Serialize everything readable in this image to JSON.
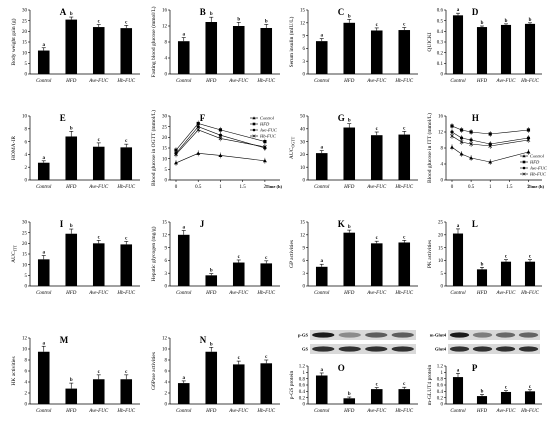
{
  "chart_data": [
    {
      "id": "A",
      "label": "A",
      "type": "bar",
      "categories": [
        "Control",
        "HFD",
        "Ave-FUC",
        "Hb-FUC"
      ],
      "values": [
        11,
        25.5,
        22,
        21.5
      ],
      "errors": [
        1.3,
        1.2,
        1.2,
        1.3
      ],
      "sig": [
        "a",
        "b",
        "c",
        "c"
      ],
      "ylabel": "Body weight gain (g)",
      "ylim": [
        0,
        30
      ],
      "yticks": [
        0,
        5,
        10,
        15,
        20,
        25,
        30
      ]
    },
    {
      "id": "B",
      "label": "B",
      "type": "bar",
      "categories": [
        "Control",
        "HFD",
        "Ave-FUC",
        "Hb-FUC"
      ],
      "values": [
        8.2,
        13,
        12,
        11.5
      ],
      "errors": [
        0.9,
        1.2,
        0.9,
        0.9
      ],
      "sig": [
        "a",
        "b",
        "b",
        "b"
      ],
      "ylabel": "Fasting blood glucose (mmol/L)",
      "ylim": [
        0,
        16
      ],
      "yticks": [
        0,
        4,
        8,
        12,
        16
      ]
    },
    {
      "id": "C",
      "label": "C",
      "type": "bar",
      "categories": [
        "Control",
        "HFD",
        "Ave-FUC",
        "Hb-FUC"
      ],
      "values": [
        7.7,
        12,
        10.2,
        10.3
      ],
      "errors": [
        0.6,
        0.8,
        0.6,
        0.6
      ],
      "sig": [
        "a",
        "b",
        "c",
        "c"
      ],
      "ylabel": "Serum insulin (mIU/L)",
      "ylim": [
        0,
        15
      ],
      "yticks": [
        0,
        3,
        6,
        9,
        12,
        15
      ]
    },
    {
      "id": "D",
      "label": "D",
      "type": "bar",
      "categories": [
        "Control",
        "HFD",
        "Ave-FUC",
        "Hb-FUC"
      ],
      "values": [
        0.55,
        0.44,
        0.46,
        0.47
      ],
      "errors": [
        0.02,
        0.01,
        0.01,
        0.01
      ],
      "sig": [
        "a",
        "b",
        "b",
        "b"
      ],
      "ylabel": "QUICKI",
      "ylim": [
        0,
        0.6
      ],
      "yticks": [
        "0",
        "0.1",
        "0.2",
        "0.3",
        "0.4",
        "0.5",
        "0.6"
      ]
    },
    {
      "id": "E",
      "label": "E",
      "type": "bar",
      "categories": [
        "Control",
        "HFD",
        "Ave-FUC",
        "Hb-FUC"
      ],
      "values": [
        2.7,
        6.8,
        5.2,
        5.1
      ],
      "errors": [
        0.3,
        0.8,
        0.6,
        0.5
      ],
      "sig": [
        "a",
        "b",
        "c",
        "c"
      ],
      "ylabel": "HOMA-IR",
      "ylim": [
        0,
        10
      ],
      "yticks": [
        0,
        2,
        4,
        6,
        8,
        10
      ]
    },
    {
      "id": "F",
      "label": "F",
      "type": "line",
      "x": [
        0,
        0.5,
        1,
        2
      ],
      "xticks": [
        "0",
        "0.5",
        "1",
        "1.5",
        "2"
      ],
      "xlabel": "Time (h)",
      "ylabel": "Blood glucose in OGTT (mmol/L)",
      "ylim": [
        0,
        30
      ],
      "yticks": [
        0,
        5,
        10,
        15,
        20,
        25,
        30
      ],
      "series": [
        {
          "name": "Control",
          "marker": "triangle",
          "values": [
            8,
            12.5,
            11.5,
            9
          ]
        },
        {
          "name": "HFD",
          "marker": "square",
          "values": [
            14,
            26.5,
            23.5,
            18
          ]
        },
        {
          "name": "Ave-FUC",
          "marker": "circle",
          "values": [
            12.5,
            25,
            21,
            15
          ]
        },
        {
          "name": "Hb-FUC",
          "marker": "x",
          "values": [
            12,
            23.5,
            19.5,
            15.5
          ]
        }
      ]
    },
    {
      "id": "G",
      "label": "G",
      "type": "bar",
      "categories": [
        "Control",
        "HFD",
        "Ave-FUC",
        "Hb-FUC"
      ],
      "values": [
        21,
        41,
        35,
        35.5
      ],
      "errors": [
        2,
        3,
        2.5,
        2.5
      ],
      "sig": [
        "a",
        "b",
        "c",
        "c"
      ],
      "ylabel": "AUC_OGTT",
      "ylim": [
        0,
        50
      ],
      "yticks": [
        0,
        10,
        20,
        30,
        40,
        50
      ]
    },
    {
      "id": "H",
      "label": "H",
      "type": "line",
      "x": [
        0,
        0.25,
        0.5,
        1,
        2
      ],
      "xticks": [
        "0",
        "0.5",
        "1",
        "1.5",
        "2"
      ],
      "xlabel": "Time (h)",
      "ylabel": "Blood glucose in ITT (mmol/L)",
      "ylim": [
        0,
        16
      ],
      "yticks": [
        0,
        4,
        8,
        12,
        16
      ],
      "series": [
        {
          "name": "Control",
          "marker": "triangle",
          "values": [
            8.2,
            6.5,
            5.5,
            4.5,
            7
          ]
        },
        {
          "name": "HFD",
          "marker": "square",
          "values": [
            13.5,
            12.5,
            12,
            11.5,
            12.5
          ]
        },
        {
          "name": "Ave-FUC",
          "marker": "circle",
          "values": [
            12,
            10.5,
            10,
            9,
            10.5
          ]
        },
        {
          "name": "Hb-FUC",
          "marker": "x",
          "values": [
            11,
            9.5,
            9,
            8.5,
            10
          ]
        }
      ]
    },
    {
      "id": "I",
      "label": "I",
      "type": "bar",
      "categories": [
        "Control",
        "HFD",
        "Ave-FUC",
        "Hb-FUC"
      ],
      "values": [
        12.5,
        24.5,
        20,
        19.5
      ],
      "errors": [
        1.8,
        2.2,
        1.4,
        1.4
      ],
      "sig": [
        "a",
        "b",
        "c",
        "c"
      ],
      "ylabel": "AUC_ITT",
      "ylim": [
        0,
        30
      ],
      "yticks": [
        0,
        5,
        10,
        15,
        20,
        25,
        30
      ]
    },
    {
      "id": "J",
      "label": "J",
      "type": "bar",
      "categories": [
        "Control",
        "HFD",
        "Ave-FUC",
        "Hb-FUC"
      ],
      "values": [
        12,
        2.5,
        5.5,
        5.3
      ],
      "errors": [
        1,
        0.4,
        0.6,
        0.6
      ],
      "sig": [
        "a",
        "b",
        "c",
        "c"
      ],
      "ylabel": "Hepatic glycogen (mg/g)",
      "ylim": [
        0,
        15
      ],
      "yticks": [
        0,
        3,
        6,
        9,
        12,
        15
      ]
    },
    {
      "id": "K",
      "label": "K",
      "type": "bar",
      "categories": [
        "Control",
        "HFD",
        "Ave-FUC",
        "Hb-FUC"
      ],
      "values": [
        4.5,
        12.5,
        10,
        10.2
      ],
      "errors": [
        0.6,
        0.6,
        0.5,
        0.5
      ],
      "sig": [
        "a",
        "b",
        "c",
        "c"
      ],
      "ylabel": "GP activities",
      "ylim": [
        0,
        15
      ],
      "yticks": [
        0,
        3,
        6,
        9,
        12,
        15
      ]
    },
    {
      "id": "L",
      "label": "L",
      "type": "bar",
      "categories": [
        "Control",
        "HFD",
        "Ave-FUC",
        "Hb-FUC"
      ],
      "values": [
        20.5,
        6.5,
        9.5,
        9.5
      ],
      "errors": [
        1.8,
        0.8,
        0.8,
        0.8
      ],
      "sig": [
        "a",
        "b",
        "c",
        "c"
      ],
      "ylabel": "PK activities",
      "ylim": [
        0,
        25
      ],
      "yticks": [
        0,
        5,
        10,
        15,
        20,
        25
      ]
    },
    {
      "id": "M",
      "label": "M",
      "type": "bar",
      "categories": [
        "Control",
        "HFD",
        "Ave-FUC",
        "Hb-FUC"
      ],
      "values": [
        9.5,
        2.8,
        4.5,
        4.5
      ],
      "errors": [
        1,
        1,
        0.8,
        0.8
      ],
      "sig": [
        "a",
        "b",
        "c",
        "c"
      ],
      "ylabel": "HK activities",
      "ylim": [
        0,
        12
      ],
      "yticks": [
        0,
        2,
        4,
        6,
        8,
        10,
        12
      ]
    },
    {
      "id": "N",
      "label": "N",
      "type": "bar",
      "categories": [
        "Control",
        "HFD",
        "Ave-FUC",
        "Hb-FUC"
      ],
      "values": [
        3.8,
        9.5,
        7.2,
        7.4
      ],
      "errors": [
        0.4,
        0.8,
        0.6,
        0.6
      ],
      "sig": [
        "a",
        "b",
        "c",
        "c"
      ],
      "ylabel": "G6Pase activities",
      "ylim": [
        0,
        12
      ],
      "yticks": [
        0,
        2,
        4,
        6,
        8,
        10,
        12
      ]
    },
    {
      "id": "O",
      "label": "O",
      "type": "bar",
      "categories": [
        "Control",
        "HFD",
        "Ave-FUC",
        "Hb-FUC"
      ],
      "values": [
        0.9,
        0.18,
        0.47,
        0.47
      ],
      "errors": [
        0.08,
        0.04,
        0.05,
        0.06
      ],
      "sig": [
        "a",
        "b",
        "c",
        "c"
      ],
      "ylabel": "p-GS protein",
      "ylim": [
        0,
        1.2
      ],
      "yticks": [
        "0",
        "0.2",
        "0.4",
        "0.6",
        "0.8",
        "1",
        "1.2"
      ],
      "blot_labels": [
        "p-GS",
        "GS"
      ]
    },
    {
      "id": "P",
      "label": "P",
      "type": "bar",
      "categories": [
        "Control",
        "HFD",
        "Ave-FUC",
        "Hb-FUC"
      ],
      "values": [
        0.85,
        0.25,
        0.38,
        0.4
      ],
      "errors": [
        0.12,
        0.05,
        0.04,
        0.05
      ],
      "sig": [
        "a",
        "b",
        "c",
        "c"
      ],
      "ylabel": "m-GLUT4 protein",
      "ylim": [
        0,
        1.2
      ],
      "yticks": [
        "0",
        "0.2",
        "0.4",
        "0.6",
        "0.8",
        "1",
        "1.2"
      ],
      "blot_labels": [
        "m-Glut4",
        "Glut4"
      ]
    }
  ]
}
